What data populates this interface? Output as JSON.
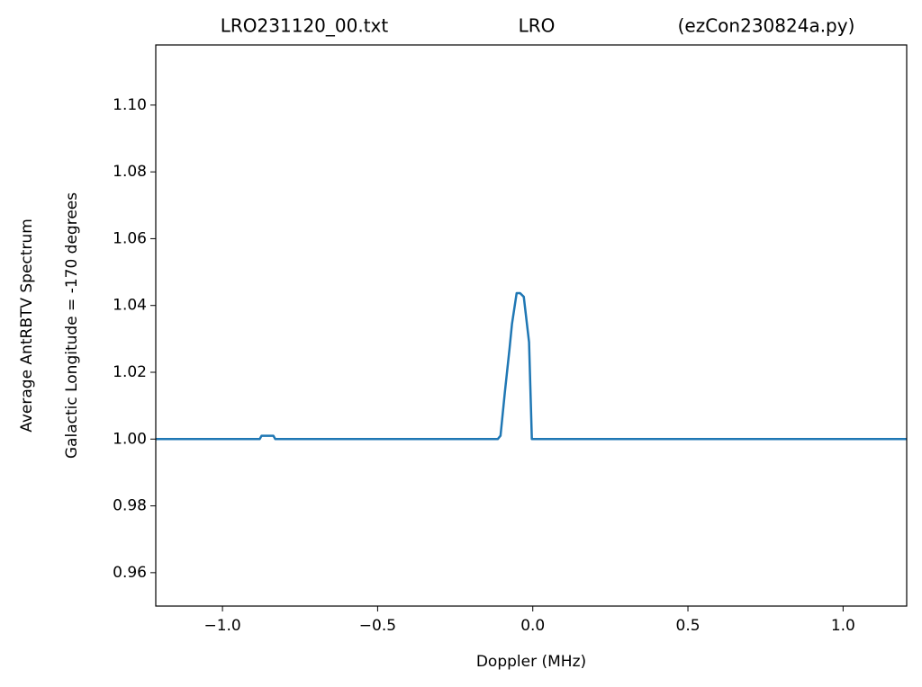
{
  "chart_data": {
    "type": "line",
    "title": [
      "LRO231120_00.txt",
      "LRO",
      "(ezCon230824a.py)"
    ],
    "xlabel": "Doppler (MHz)",
    "ylabel": [
      "Average AntRBTV Spectrum",
      "Galactic Longitude = -170 degrees"
    ],
    "x": [
      -1.215,
      -0.88,
      -0.874,
      -0.848,
      -0.836,
      -0.83,
      -0.113,
      -0.104,
      -0.09,
      -0.075,
      -0.067,
      -0.052,
      -0.041,
      -0.029,
      -0.012,
      -0.003,
      1.205
    ],
    "series": [
      {
        "name": "spectrum",
        "color": "#1f77b4",
        "values": [
          1.0,
          1.0,
          1.001,
          1.001,
          1.001,
          1.0,
          1.0,
          1.001,
          1.014,
          1.027,
          1.0345,
          1.0437,
          1.0437,
          1.0426,
          1.029,
          1.0,
          1.0
        ]
      }
    ],
    "xlim": [
      -1.215,
      1.205
    ],
    "ylim": [
      0.95,
      1.118
    ],
    "xticks": [
      {
        "value": -1.0,
        "label": "−1.0"
      },
      {
        "value": -0.5,
        "label": "−0.5"
      },
      {
        "value": 0.0,
        "label": "0.0"
      },
      {
        "value": 0.5,
        "label": "0.5"
      },
      {
        "value": 1.0,
        "label": "1.0"
      }
    ],
    "yticks": [
      0.96,
      0.98,
      {
        "value": 1.0,
        "label": "1.00"
      },
      1.02,
      1.04,
      1.06,
      1.08,
      {
        "value": 1.1,
        "label": "1.10"
      }
    ]
  }
}
